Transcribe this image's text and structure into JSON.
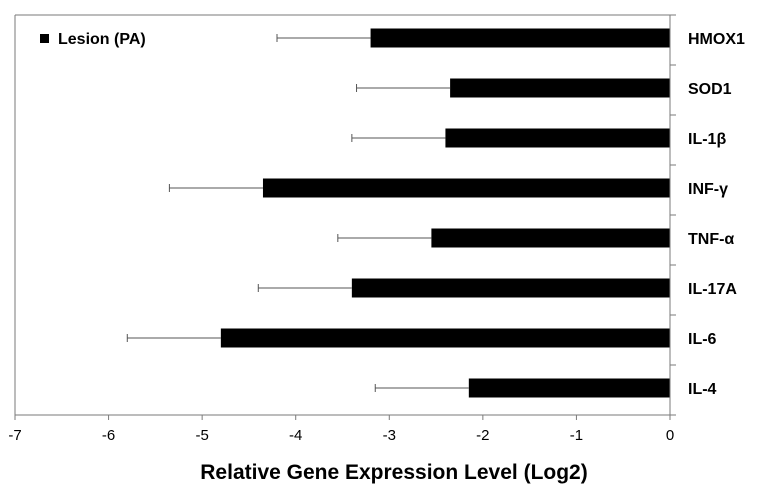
{
  "chart_data": {
    "type": "bar",
    "orientation": "horizontal",
    "categories": [
      "HMOX1",
      "SOD1",
      "IL-1β",
      "INF-γ",
      "TNF-α",
      "IL-17A",
      "IL-6",
      "IL-4"
    ],
    "series": [
      {
        "name": "Lesion (PA)",
        "values": [
          -3.2,
          -2.35,
          -2.4,
          -4.35,
          -2.55,
          -3.4,
          -4.8,
          -2.15
        ],
        "error": [
          1.0,
          1.0,
          1.0,
          1.0,
          1.0,
          1.0,
          1.0,
          1.0
        ],
        "color": "#000000"
      }
    ],
    "xlabel": "Relative Gene Expression Level (Log2)",
    "xlim": [
      -7,
      0
    ],
    "xticks": [
      "-7",
      "-6",
      "-5",
      "-4",
      "-3",
      "-2",
      "-1",
      "0"
    ],
    "legend_position": "top-left",
    "grid": false
  }
}
